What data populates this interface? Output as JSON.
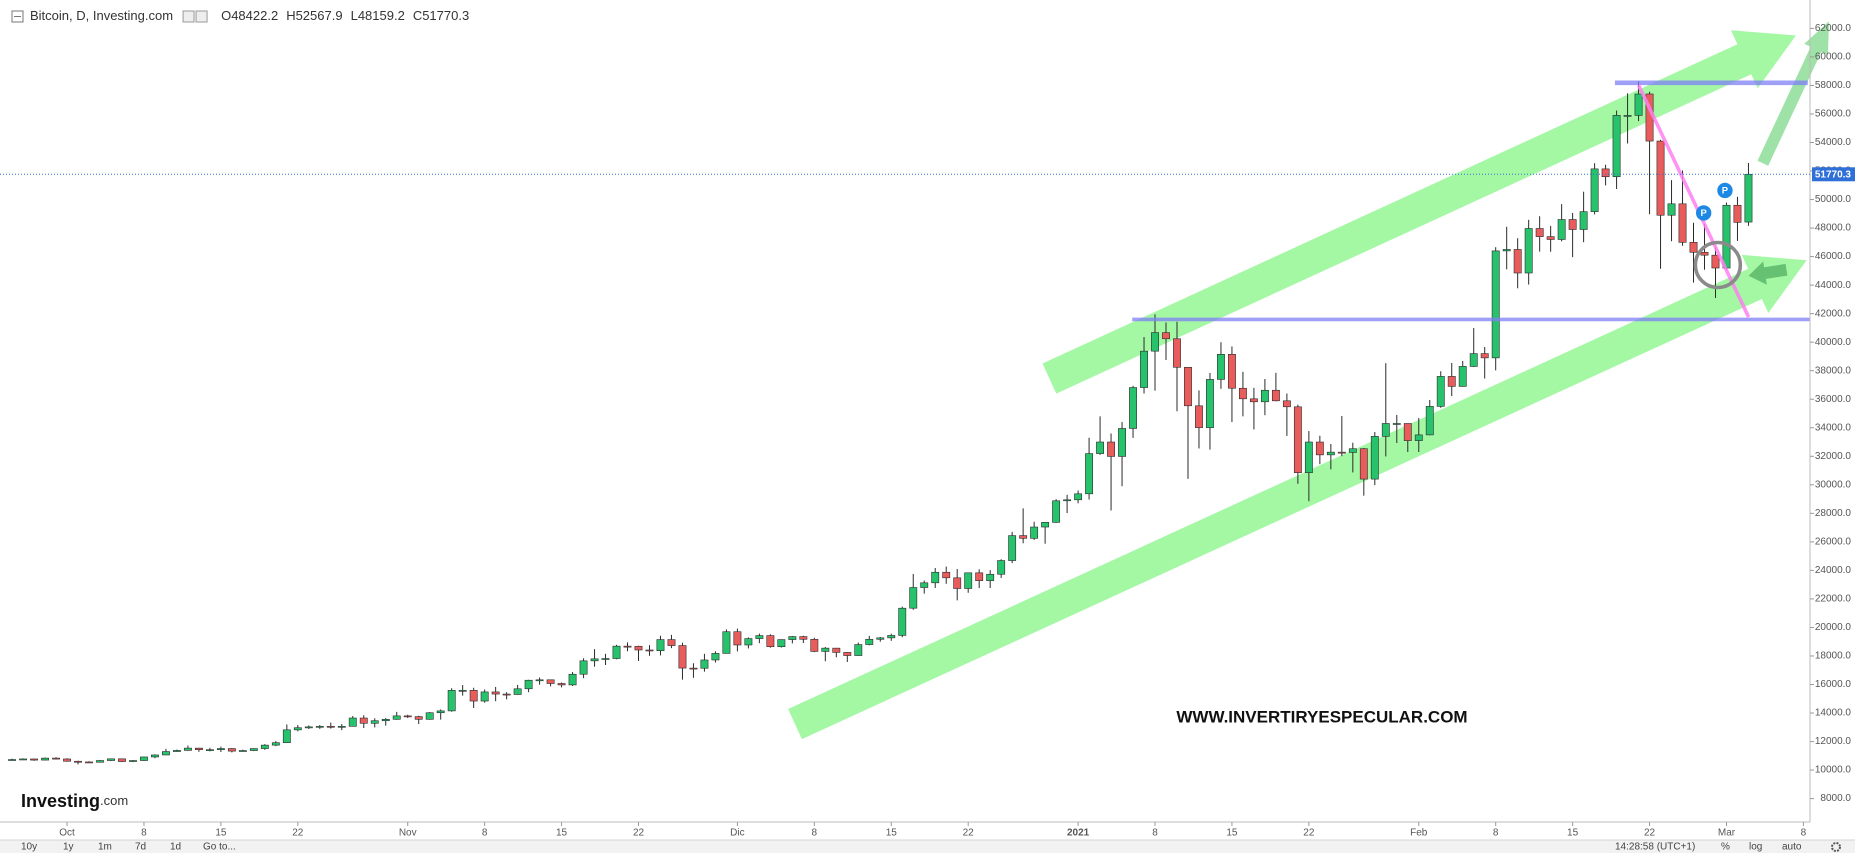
{
  "chart_data": {
    "type": "candlestick",
    "header": {
      "title": "Bitcoin, D, Investing.com",
      "ohlc_prefixes": [
        "O",
        "H",
        "L",
        "C"
      ]
    },
    "open": [
      10690,
      10740,
      10780,
      10700,
      10840,
      10780,
      10620,
      10570,
      10550,
      10670,
      10790,
      10600,
      10670,
      10920,
      11060,
      11300,
      11380,
      11540,
      11430,
      11430,
      11510,
      11330,
      11370,
      11510,
      11750,
      11920,
      12820,
      12970,
      13030,
      13070,
      13030,
      13070,
      13650,
      13280,
      13460,
      13560,
      13800,
      13750,
      13560,
      14020,
      14150,
      15590,
      15590,
      14840,
      15480,
      15330,
      15300,
      15700,
      16300,
      16330,
      16070,
      15970,
      16720,
      17660,
      17800,
      17820,
      18690,
      18680,
      18420,
      18370,
      19150,
      18730,
      17150,
      17140,
      17720,
      18180,
      19700,
      18770,
      19220,
      19430,
      18650,
      19150,
      19360,
      19170,
      18320,
      18550,
      18250,
      18030,
      18800,
      19170,
      19270,
      19440,
      21350,
      22800,
      23130,
      23870,
      23480,
      22730,
      23830,
      23280,
      23730,
      24690,
      26440,
      26250,
      27040,
      27370,
      28880,
      28950,
      29370,
      32190,
      33000,
      31990,
      33950,
      36820,
      39370,
      40670,
      40240,
      38240,
      35540,
      34010,
      37390,
      39150,
      36770,
      36030,
      35820,
      36630,
      35890,
      35470,
      30850,
      33000,
      32100,
      32290,
      32270,
      32530,
      30400,
      33400,
      34300,
      34300,
      33100,
      33500,
      35500,
      37600,
      36900,
      38300,
      39200,
      38900,
      46400,
      46500,
      44850,
      47970,
      47400,
      47200,
      48600,
      47900,
      49150,
      52150,
      51600,
      55900,
      55900,
      57400,
      54100,
      48900,
      49700,
      47000,
      46300,
      46100,
      45200,
      49600,
      48422.2
    ],
    "high": [
      10800,
      10820,
      10800,
      10880,
      10900,
      10830,
      10660,
      10620,
      10700,
      10810,
      10800,
      10700,
      10950,
      11100,
      11490,
      11440,
      11720,
      11560,
      11560,
      11640,
      11540,
      11430,
      11520,
      11820,
      12030,
      13200,
      13160,
      13130,
      13160,
      13330,
      13230,
      13790,
      13850,
      13630,
      13650,
      14080,
      13880,
      13810,
      14070,
      14250,
      15740,
      15960,
      15770,
      15650,
      15830,
      15460,
      15970,
      16330,
      16490,
      16330,
      16140,
      16880,
      17840,
      18480,
      18150,
      18780,
      18950,
      18720,
      18760,
      19420,
      19480,
      18930,
      17490,
      18150,
      18330,
      19860,
      19920,
      19300,
      19570,
      19520,
      19160,
      19400,
      19420,
      19280,
      18630,
      18560,
      18270,
      18940,
      19410,
      19330,
      19560,
      21460,
      23750,
      23290,
      24170,
      24270,
      24100,
      23840,
      24080,
      24020,
      24780,
      26700,
      28350,
      27410,
      27390,
      28990,
      29300,
      29600,
      33300,
      34800,
      33600,
      34400,
      36940,
      40360,
      41950,
      41380,
      41430,
      38240,
      36620,
      37840,
      40000,
      39700,
      37920,
      36800,
      37420,
      37850,
      36400,
      35620,
      33770,
      33440,
      32860,
      34820,
      32950,
      32580,
      33700,
      38530,
      34900,
      34300,
      34680,
      35950,
      37960,
      38540,
      38680,
      40990,
      39660,
      46660,
      48090,
      47290,
      48580,
      48830,
      48150,
      49680,
      49060,
      50550,
      52550,
      52440,
      56240,
      57450,
      58300,
      57560,
      54190,
      51360,
      52040,
      48370,
      48290,
      46650,
      49790,
      50190,
      52567.9
    ],
    "low": [
      10660,
      10700,
      10650,
      10680,
      10740,
      10590,
      10400,
      10520,
      10530,
      10630,
      10560,
      10560,
      10640,
      10830,
      11050,
      11280,
      11360,
      11280,
      11310,
      11270,
      11240,
      11310,
      11330,
      11420,
      11680,
      11900,
      12720,
      12880,
      12890,
      12910,
      12800,
      13050,
      12950,
      12990,
      13120,
      13530,
      13650,
      13230,
      13530,
      13540,
      14090,
      15220,
      14350,
      14730,
      14830,
      14960,
      15280,
      15460,
      15990,
      15870,
      15800,
      15900,
      16450,
      17250,
      17370,
      17770,
      18330,
      17650,
      18010,
      18040,
      18550,
      16340,
      16470,
      16900,
      17540,
      18180,
      18320,
      18530,
      18900,
      18580,
      18590,
      18880,
      18910,
      18270,
      17630,
      17910,
      17580,
      18020,
      18750,
      19000,
      19060,
      19310,
      21240,
      22370,
      22770,
      23060,
      21900,
      22430,
      22760,
      22770,
      23470,
      24510,
      25900,
      26140,
      25870,
      27330,
      28020,
      28700,
      28970,
      32100,
      28200,
      29900,
      33290,
      36400,
      36600,
      38750,
      35160,
      30420,
      32550,
      32470,
      36730,
      34400,
      34800,
      33880,
      34880,
      35850,
      33430,
      30070,
      28850,
      31450,
      31080,
      32010,
      30870,
      29240,
      29980,
      31990,
      32930,
      32300,
      32300,
      33470,
      35400,
      36220,
      36880,
      38260,
      37450,
      38020,
      45110,
      43780,
      44040,
      46350,
      46340,
      47070,
      45960,
      47010,
      48960,
      50990,
      50740,
      53930,
      55500,
      48970,
      45150,
      47080,
      46760,
      44180,
      45080,
      43100,
      45070,
      47100,
      48159.2
    ],
    "close": [
      10740,
      10780,
      10700,
      10840,
      10780,
      10620,
      10570,
      10550,
      10670,
      10790,
      10600,
      10670,
      10920,
      11060,
      11300,
      11380,
      11540,
      11430,
      11430,
      11510,
      11330,
      11370,
      11510,
      11750,
      11920,
      12820,
      12970,
      13030,
      13070,
      13030,
      13070,
      13650,
      13280,
      13460,
      13560,
      13800,
      13750,
      13560,
      14020,
      14150,
      15590,
      15590,
      14840,
      15480,
      15330,
      15300,
      15700,
      16300,
      16330,
      16070,
      15970,
      16720,
      17660,
      17800,
      17820,
      18690,
      18680,
      18420,
      18370,
      19150,
      18730,
      17150,
      17140,
      17720,
      18180,
      19700,
      18770,
      19220,
      19430,
      18650,
      19150,
      19360,
      19170,
      18320,
      18550,
      18250,
      18030,
      18800,
      19170,
      19270,
      19440,
      21350,
      22800,
      23130,
      23870,
      23480,
      22730,
      23830,
      23280,
      23730,
      24690,
      26440,
      26250,
      27040,
      27370,
      28880,
      28950,
      29370,
      32190,
      33000,
      31990,
      33950,
      36820,
      39370,
      40670,
      40240,
      38240,
      35540,
      34010,
      37390,
      39150,
      36770,
      36030,
      35820,
      36630,
      35890,
      35470,
      30850,
      33000,
      32100,
      32290,
      32270,
      32530,
      30400,
      33400,
      34300,
      34300,
      33100,
      33500,
      35500,
      37600,
      36900,
      38300,
      39200,
      38900,
      46400,
      46500,
      44850,
      47970,
      47400,
      47200,
      48600,
      47900,
      49150,
      52150,
      51600,
      55900,
      55900,
      57400,
      54100,
      48900,
      49700,
      47000,
      46300,
      46100,
      45200,
      49600,
      48400,
      51770.3
    ],
    "up_color": "#27c26c",
    "down_color": "#e85c5c",
    "wick_color": "#2b2b2b",
    "last_price_color": "#2f6fd8",
    "xlim": [
      -1.1,
      163.6
    ],
    "xticks": [
      {
        "value": 5,
        "label": "Oct"
      },
      {
        "value": 12,
        "label": "8"
      },
      {
        "value": 19,
        "label": "15"
      },
      {
        "value": 26,
        "label": "22"
      },
      {
        "value": 36,
        "label": "Nov"
      },
      {
        "value": 43,
        "label": "8"
      },
      {
        "value": 50,
        "label": "15"
      },
      {
        "value": 57,
        "label": "22"
      },
      {
        "value": 66,
        "label": "Dic"
      },
      {
        "value": 73,
        "label": "8"
      },
      {
        "value": 80,
        "label": "15"
      },
      {
        "value": 87,
        "label": "22"
      },
      {
        "value": 97,
        "label": "2021"
      },
      {
        "value": 104,
        "label": "8"
      },
      {
        "value": 111,
        "label": "15"
      },
      {
        "value": 118,
        "label": "22"
      },
      {
        "value": 128,
        "label": "Feb"
      },
      {
        "value": 135,
        "label": "8"
      },
      {
        "value": 142,
        "label": "15"
      },
      {
        "value": 149,
        "label": "22"
      },
      {
        "value": 156,
        "label": "Mar"
      },
      {
        "value": 163,
        "label": "8"
      }
    ],
    "ylim": [
      6360,
      63990
    ],
    "yticks": [
      {
        "value": 8000,
        "label": "8000.0"
      },
      {
        "value": 10000,
        "label": "10000.0"
      },
      {
        "value": 12000,
        "label": "12000.0"
      },
      {
        "value": 14000,
        "label": "14000.0"
      },
      {
        "value": 16000,
        "label": "16000.0"
      },
      {
        "value": 18000,
        "label": "18000.0"
      },
      {
        "value": 20000,
        "label": "20000.0"
      },
      {
        "value": 22000,
        "label": "22000.0"
      },
      {
        "value": 24000,
        "label": "24000.0"
      },
      {
        "value": 26000,
        "label": "26000.0"
      },
      {
        "value": 28000,
        "label": "28000.0"
      },
      {
        "value": 30000,
        "label": "30000.0"
      },
      {
        "value": 32000,
        "label": "32000.0"
      },
      {
        "value": 34000,
        "label": "34000.0"
      },
      {
        "value": 36000,
        "label": "36000.0"
      },
      {
        "value": 38000,
        "label": "38000.0"
      },
      {
        "value": 40000,
        "label": "40000.0"
      },
      {
        "value": 42000,
        "label": "42000.0"
      },
      {
        "value": 44000,
        "label": "44000.0"
      },
      {
        "value": 46000,
        "label": "46000.0"
      },
      {
        "value": 48000,
        "label": "48000.0"
      },
      {
        "value": 50000,
        "label": "50000.0"
      },
      {
        "value": 52000,
        "label": "52000.0"
      },
      {
        "value": 54000,
        "label": "54000.0"
      },
      {
        "value": 56000,
        "label": "56000.0"
      },
      {
        "value": 58000,
        "label": "58000.0"
      },
      {
        "value": 60000,
        "label": "60000.0"
      },
      {
        "value": 62000,
        "label": "62000.0"
      }
    ],
    "grid": false,
    "log_scale": false,
    "annotations": {
      "pivot_labels": [
        "P",
        "P"
      ],
      "watermark": "WWW.INVERTIRYESPECULAR.COM"
    },
    "logo": {
      "name": "Investing",
      "suffix": ".com"
    }
  },
  "toolbar": {
    "ranges": [
      "10y",
      "1y",
      "1m",
      "7d",
      "1d"
    ],
    "goto": "Go to...",
    "time": "14:28:58 (UTC+1)",
    "options": [
      "%",
      "log",
      "auto"
    ]
  }
}
